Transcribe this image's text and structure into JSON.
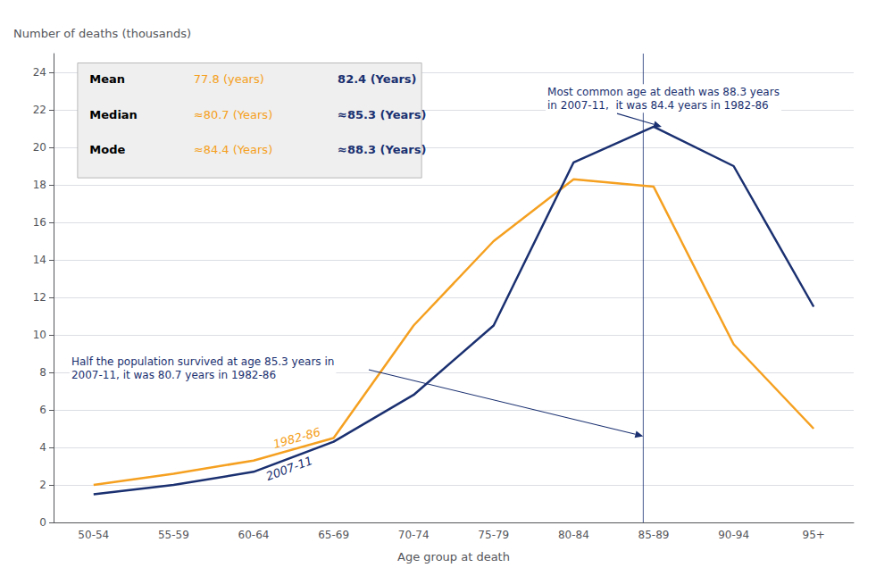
{
  "chart_data": {
    "type": "line",
    "categories": [
      "50-54",
      "55-59",
      "60-64",
      "65-69",
      "70-74",
      "75-79",
      "80-84",
      "85-89",
      "90-94",
      "95+"
    ],
    "series": [
      {
        "name": "1982-86",
        "color": "#f5a020",
        "values": [
          2.0,
          2.6,
          3.3,
          4.5,
          10.5,
          15.0,
          18.3,
          17.9,
          9.5,
          5.0
        ],
        "table_values": [
          "77.8 (years)",
          "≈80.7 (Years)",
          "≈84.4 (Years)"
        ]
      },
      {
        "name": "2007-11",
        "color": "#1a3070",
        "values": [
          1.5,
          2.0,
          2.7,
          4.3,
          6.8,
          10.5,
          19.2,
          21.1,
          19.0,
          11.5
        ],
        "table_values": [
          "82.4 (Years)",
          "≈85.3 (Years)",
          "≈88.3 (Years)"
        ]
      }
    ],
    "xlabel": "Age group at death",
    "ylabel": "Number of deaths (thousands)",
    "ylim": [
      0,
      25
    ],
    "yticks": [
      0,
      2,
      4,
      6,
      8,
      10,
      12,
      14,
      16,
      18,
      20,
      22,
      24
    ],
    "grid": true,
    "table_rows": [
      "Mean",
      "Median",
      "Mode"
    ],
    "vertical_line": {
      "x": 6.87,
      "color": "#1a3070"
    },
    "annotations": [
      {
        "text": "Most common age at death was 88.3 years\nin 2007-11,  it was 84.4 years in 1982-86",
        "x": 7.1,
        "y": 21.1,
        "color": "#1a3070"
      },
      {
        "text": "Half the population survived at age 85.3 years in\n2007-11, it was 80.7 years in 1982-86",
        "x": 6.87,
        "y": 4.6,
        "color": "#1a3070"
      }
    ]
  }
}
